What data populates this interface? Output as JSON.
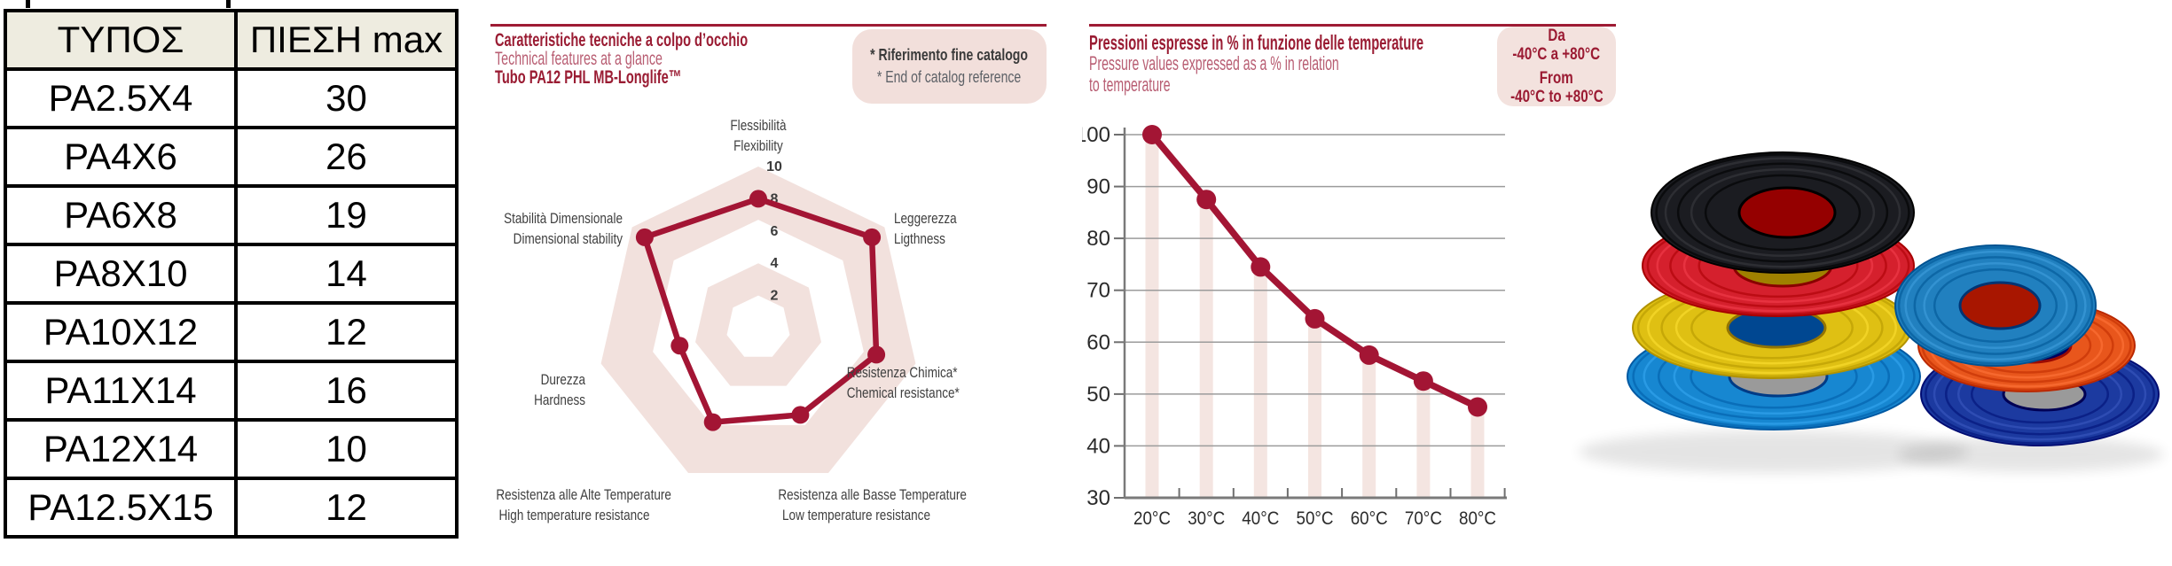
{
  "table": {
    "headers": [
      "ΤΥΠΟΣ",
      "ΠΙΕΣΗ max"
    ],
    "rows": [
      [
        "PA2.5X4",
        "30"
      ],
      [
        "PA4X6",
        "26"
      ],
      [
        "PA6X8",
        "19"
      ],
      [
        "PA8X10",
        "14"
      ],
      [
        "PA10X12",
        "12"
      ],
      [
        "PA11X14",
        "16"
      ],
      [
        "PA12X14",
        "10"
      ],
      [
        "PA12.5X15",
        "12"
      ]
    ]
  },
  "radar_section": {
    "title_it": "Caratteristiche tecniche a colpo d’occhio",
    "title_en": "Technical features at a glance",
    "product": "Tubo PA12 PHL MB-Longlife™",
    "note_it": "* Riferimento fine catalogo",
    "note_en": "* End of catalog reference"
  },
  "pressure_section": {
    "title_it": "Pressioni espresse in % in funzione delle temperature",
    "title_en_line1": "Pressure values expressed as a % in relation",
    "title_en_line2": "to temperature",
    "badge": {
      "line1": "Da",
      "line2": "-40°C a +80°C",
      "line3": "From",
      "line4": "-40°C to +80°C"
    }
  },
  "chart_data": [
    {
      "type": "radar",
      "title": "Technical features at a glance",
      "max": 10,
      "scale_ticks": [
        10,
        8,
        6,
        4,
        2
      ],
      "axes": [
        {
          "it": "Flessibilità",
          "en": "Flexibility"
        },
        {
          "it": "Leggerezza",
          "en": "Ligthness"
        },
        {
          "it": "Resistenza Chimica*",
          "en": "Chemical resistance*"
        },
        {
          "it": "Resistenza alle Basse Temperature",
          "en": "Low temperature resistance"
        },
        {
          "it": "Resistenza alle Alte Temperature",
          "en": "High temperature resistance"
        },
        {
          "it": "Durezza",
          "en": "Hardness"
        },
        {
          "it": "Stabilità Dimensionale",
          "en": "Dimensional stability"
        }
      ],
      "values": [
        8,
        9,
        7.5,
        6,
        6.5,
        5,
        9
      ]
    },
    {
      "type": "line",
      "title": "Pressure values expressed as a % in relation to temperature",
      "categories": [
        "20°C",
        "30°C",
        "40°C",
        "50°C",
        "60°C",
        "70°C",
        "80°C"
      ],
      "values": [
        100,
        87.5,
        74.5,
        64.5,
        57.5,
        52.5,
        47.5
      ],
      "ylim": [
        30,
        100
      ],
      "yticks": [
        100,
        90,
        80,
        70,
        60,
        50,
        40,
        30
      ],
      "grid": true,
      "bars": true
    }
  ],
  "photo": {
    "left_stack": [
      {
        "name": "light-blue-coil",
        "color": "#1787d1"
      },
      {
        "name": "yellow-coil",
        "color": "#dfc013"
      },
      {
        "name": "red-coil",
        "color": "#d5202d"
      },
      {
        "name": "black-coil",
        "color": "#1b1c21"
      }
    ],
    "right_stack": [
      {
        "name": "navy-blue-coil",
        "color": "#1c3aa0"
      },
      {
        "name": "orange-coil",
        "color": "#e8561c"
      },
      {
        "name": "light-blue-coil",
        "color": "#2180bf"
      }
    ]
  },
  "colors": {
    "accent": "#9e1b34",
    "line": "#a31534",
    "band_pink": "#f2e1dd",
    "bar_pink": "#f4e5e1",
    "note_bg": "#f2dfdb",
    "table_header_bg": "#eeece0",
    "grid": "#9b9b9b",
    "axis": "#7a7a7a",
    "tick_text": "#2b2b2b"
  }
}
